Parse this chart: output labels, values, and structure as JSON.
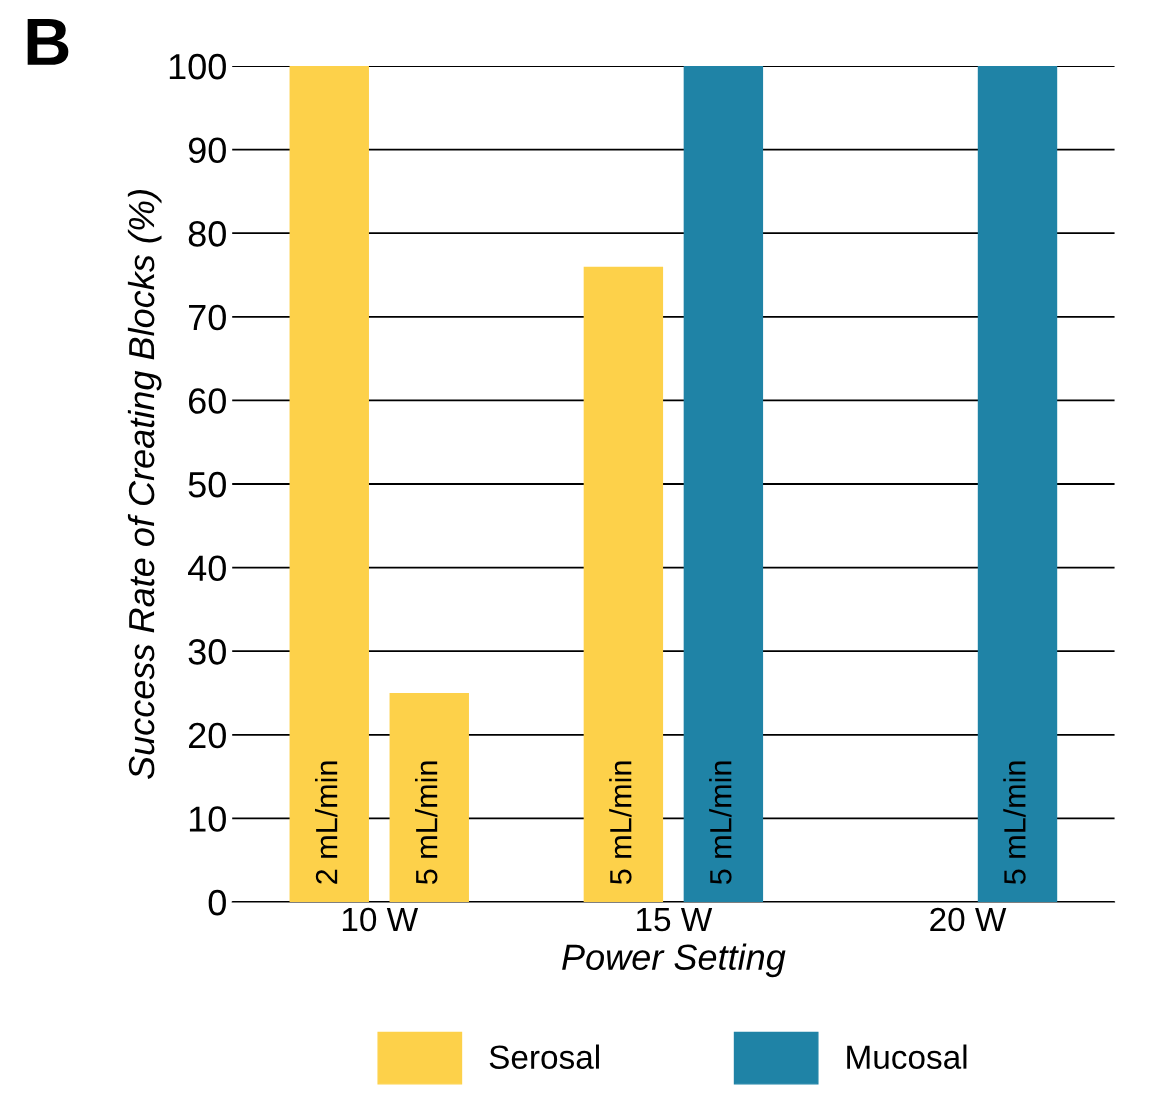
{
  "chart_data": {
    "type": "bar",
    "xlabel": "Power Setting",
    "ylabel": "Success Rate of Creating Blocks (%)",
    "categories": [
      "10 W",
      "15 W",
      "20 W"
    ],
    "series": [
      {
        "name": "Serosal",
        "color": "#fdd14a",
        "values": [
          100,
          76,
          null
        ]
      },
      {
        "color": "#fdd14a",
        "values": [
          25,
          null,
          null
        ]
      },
      {
        "name": "Mucosal",
        "color": "#1f83a6",
        "values": [
          null,
          100,
          100
        ]
      }
    ],
    "ylim": [
      0,
      100
    ],
    "yticks": [
      0,
      10,
      20,
      30,
      40,
      50,
      60,
      70,
      80,
      90,
      100
    ],
    "grid": "y",
    "legend": "bottom",
    "annotations": [
      "B",
      "2 mL/min",
      "5 mL/min",
      "5 mL/min",
      "5 mL/min",
      "5 mL/min"
    ]
  }
}
